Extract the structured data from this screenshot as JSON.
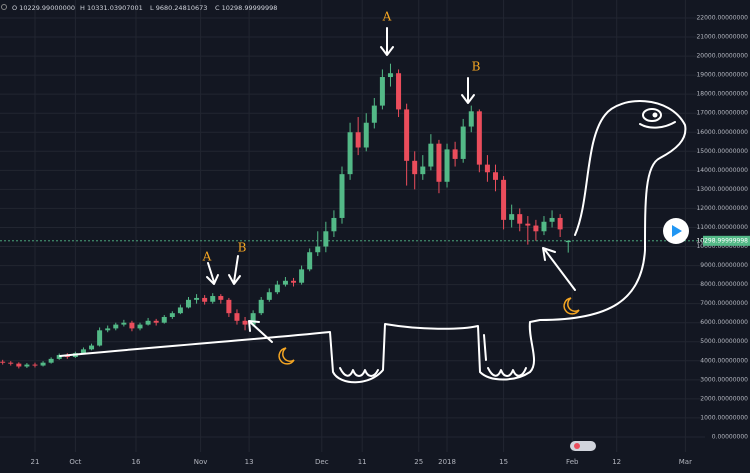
{
  "chart_data": {
    "type": "candlestick",
    "legend_text": [
      "O 10229.99000000",
      "H 10331.03907001",
      "L 9680.24810673",
      "C 10298.99999998"
    ],
    "annotations": [
      "A",
      "B",
      "A",
      "B"
    ],
    "last_price": {
      "value": 10298.99999998,
      "label": "10298.99999998"
    },
    "up_color": "#53b987",
    "down_color": "#eb4d5c",
    "grid": true,
    "xlim": [
      -8.66,
      177
    ],
    "xticks": [
      {
        "value": 0,
        "label": "21"
      },
      {
        "value": 10,
        "label": "Oct"
      },
      {
        "value": 25,
        "label": "16"
      },
      {
        "value": 41,
        "label": "Nov"
      },
      {
        "value": 53,
        "label": "13"
      },
      {
        "value": 71,
        "label": "Dec"
      },
      {
        "value": 81,
        "label": "11"
      },
      {
        "value": 95,
        "label": "25"
      },
      {
        "value": 102,
        "label": "2018"
      },
      {
        "value": 116,
        "label": "15"
      },
      {
        "value": 133,
        "label": "Feb"
      },
      {
        "value": 144,
        "label": "12"
      },
      {
        "value": 161,
        "label": "Mar"
      }
    ],
    "ylim": [
      -790,
      22945
    ],
    "yticks": [
      {
        "value": 0,
        "label": "0.00000000"
      },
      {
        "value": 1000,
        "label": "1000.00000000"
      },
      {
        "value": 2000,
        "label": "2000.00000000"
      },
      {
        "value": 3000,
        "label": "3000.00000000"
      },
      {
        "value": 4000,
        "label": "4000.00000000"
      },
      {
        "value": 5000,
        "label": "5000.00000000"
      },
      {
        "value": 6000,
        "label": "6000.00000000"
      },
      {
        "value": 7000,
        "label": "7000.00000000"
      },
      {
        "value": 8000,
        "label": "8000.00000000"
      },
      {
        "value": 9000,
        "label": "9000.00000000"
      },
      {
        "value": 10000,
        "label": "10000.00000000"
      },
      {
        "value": 11000,
        "label": "11000.00000000"
      },
      {
        "value": 12000,
        "label": "12000.00000000"
      },
      {
        "value": 13000,
        "label": "13000.00000000"
      },
      {
        "value": 14000,
        "label": "14000.00000000"
      },
      {
        "value": 15000,
        "label": "15000.00000000"
      },
      {
        "value": 16000,
        "label": "16000.00000000"
      },
      {
        "value": 17000,
        "label": "17000.00000000"
      },
      {
        "value": 18000,
        "label": "18000.00000000"
      },
      {
        "value": 19000,
        "label": "19000.00000000"
      },
      {
        "value": 20000,
        "label": "20000.00000000"
      },
      {
        "value": 21000,
        "label": "21000.00000000"
      },
      {
        "value": 22000,
        "label": "22000.00000000"
      }
    ],
    "x": [
      -8,
      -6,
      -4,
      -2,
      0,
      2,
      4,
      6,
      8,
      10,
      12,
      14,
      16,
      18,
      20,
      22,
      24,
      26,
      28,
      30,
      32,
      34,
      36,
      38,
      40,
      42,
      44,
      46,
      48,
      50,
      52,
      54,
      56,
      58,
      60,
      62,
      64,
      66,
      68,
      70,
      72,
      74,
      76,
      78,
      80,
      82,
      84,
      86,
      88,
      90,
      92,
      94,
      96,
      98,
      100,
      102,
      104,
      106,
      108,
      110,
      112,
      114,
      116,
      118,
      120,
      122,
      124,
      126,
      128,
      130,
      132
    ],
    "open": [
      3950,
      3900,
      3850,
      3700,
      3800,
      3750,
      3900,
      4100,
      4300,
      4200,
      4400,
      4600,
      4800,
      5600,
      5700,
      5900,
      6000,
      5700,
      5900,
      6100,
      6000,
      6300,
      6500,
      6800,
      7200,
      7300,
      7100,
      7400,
      7200,
      6500,
      6100,
      5900,
      6500,
      7200,
      7600,
      8000,
      8200,
      8100,
      8800,
      9700,
      10000,
      10800,
      11500,
      13800,
      16000,
      15200,
      16500,
      17400,
      18900,
      19100,
      17200,
      14500,
      13800,
      14200,
      15400,
      13400,
      15100,
      14600,
      16300,
      17100,
      14300,
      13900,
      13500,
      11400,
      11700,
      11200,
      11100,
      10800,
      11300,
      11500,
      10229.99
    ],
    "high": [
      4050,
      3980,
      3920,
      3880,
      3900,
      3980,
      4180,
      4380,
      4400,
      4480,
      4700,
      4900,
      5750,
      5850,
      6000,
      6150,
      6100,
      6000,
      6250,
      6200,
      6400,
      6600,
      6950,
      7350,
      7500,
      7450,
      7550,
      7500,
      7300,
      6700,
      6300,
      6650,
      7350,
      7800,
      8200,
      8400,
      8350,
      9000,
      9900,
      10800,
      11300,
      11900,
      14200,
      16500,
      16800,
      17000,
      17800,
      19300,
      19600,
      19300,
      17500,
      15000,
      14800,
      15900,
      15600,
      15400,
      15500,
      16700,
      17400,
      17200,
      14800,
      14300,
      13700,
      12200,
      12000,
      11600,
      11400,
      11600,
      11900,
      11700,
      10331.03907001
    ],
    "low": [
      3800,
      3750,
      3600,
      3620,
      3650,
      3700,
      3850,
      4050,
      4100,
      4150,
      4350,
      4550,
      4750,
      5500,
      5600,
      5800,
      5550,
      5600,
      5850,
      5850,
      5950,
      6200,
      6450,
      6750,
      7000,
      6950,
      7000,
      7000,
      6300,
      5900,
      5600,
      5800,
      6400,
      7100,
      7500,
      7900,
      7900,
      8000,
      8700,
      9500,
      9700,
      10500,
      11200,
      13500,
      14800,
      15000,
      16200,
      17200,
      18400,
      16800,
      13200,
      13000,
      13500,
      14000,
      12800,
      13100,
      14200,
      14400,
      16000,
      13900,
      13400,
      12900,
      10900,
      11000,
      10800,
      10100,
      10300,
      10600,
      11000,
      10500,
      9680.24810673
    ],
    "close": [
      3900,
      3850,
      3700,
      3800,
      3750,
      3900,
      4100,
      4300,
      4200,
      4400,
      4600,
      4800,
      5600,
      5700,
      5900,
      6000,
      5700,
      5900,
      6100,
      6000,
      6300,
      6500,
      6800,
      7200,
      7300,
      7100,
      7400,
      7200,
      6500,
      6100,
      5900,
      6500,
      7200,
      7600,
      8000,
      8200,
      8100,
      8800,
      9700,
      10000,
      10800,
      11500,
      13800,
      16000,
      15200,
      16500,
      17400,
      18900,
      19100,
      17200,
      14500,
      13800,
      14200,
      15400,
      13400,
      15100,
      14600,
      16300,
      17100,
      14300,
      13900,
      13500,
      11400,
      11700,
      11200,
      11100,
      10800,
      11300,
      11500,
      10900,
      10298.99999998
    ]
  }
}
